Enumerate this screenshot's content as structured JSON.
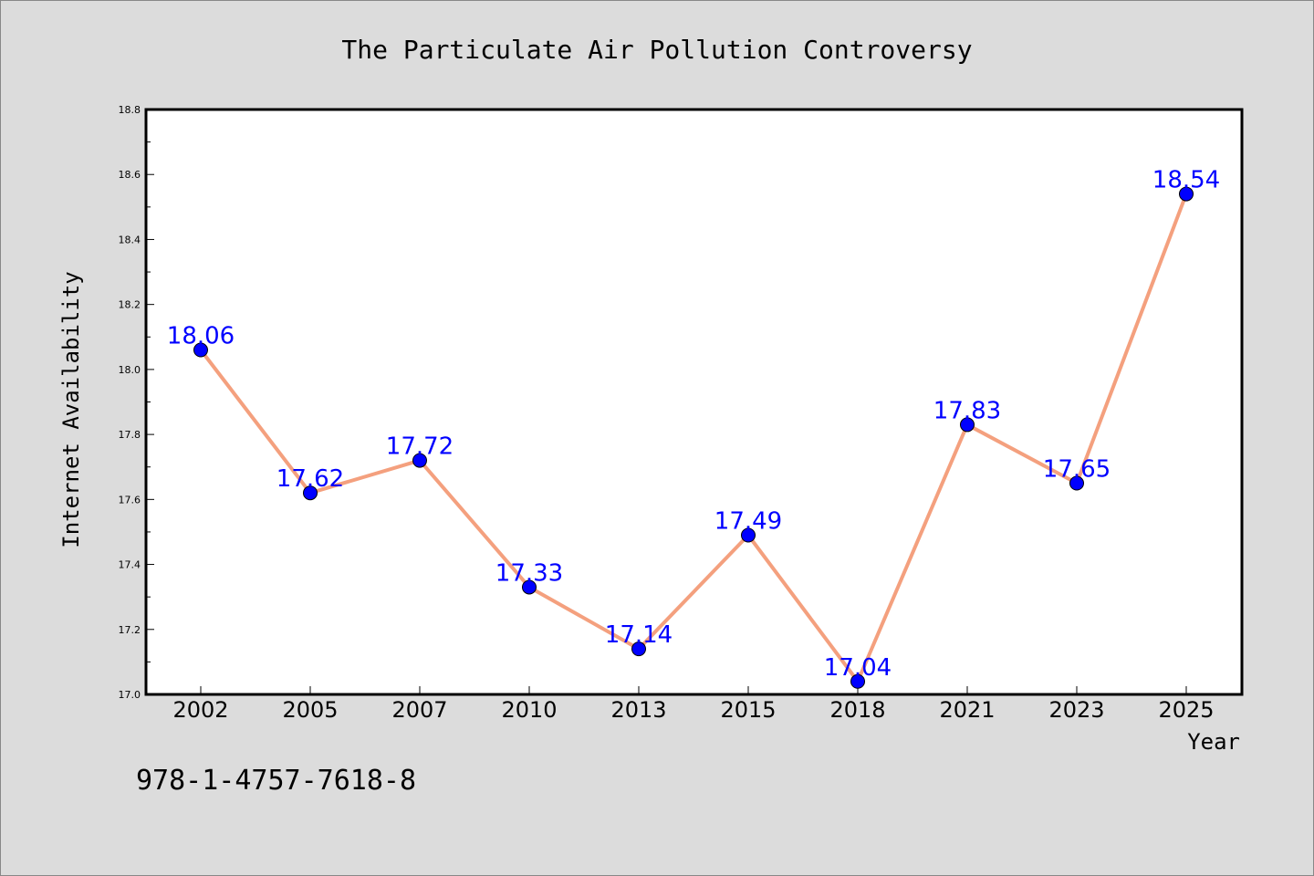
{
  "figure": {
    "isbn": "978-1-4757-7618-8"
  },
  "chart_data": {
    "type": "line",
    "title": "The Particulate Air Pollution Controversy",
    "xlabel": "Year",
    "ylabel": "Internet Availability",
    "categories": [
      "2002",
      "2005",
      "2007",
      "2010",
      "2013",
      "2015",
      "2018",
      "2021",
      "2023",
      "2025"
    ],
    "values": [
      18.06,
      17.62,
      17.72,
      17.33,
      17.14,
      17.49,
      17.04,
      17.83,
      17.65,
      18.54
    ],
    "value_labels": [
      "18.06",
      "17.62",
      "17.72",
      "17.33",
      "17.14",
      "17.49",
      "17.04",
      "17.83",
      "17.65",
      "18.54"
    ],
    "ylim": [
      17.0,
      18.8
    ],
    "yticks": [
      "17.0",
      "17.2",
      "17.4",
      "17.6",
      "17.8",
      "18.0",
      "18.2",
      "18.4",
      "18.6",
      "18.8"
    ],
    "grid": false,
    "line_color": "#f4a07e",
    "marker_color": "#0000ff",
    "label_color": "#0000ff"
  }
}
